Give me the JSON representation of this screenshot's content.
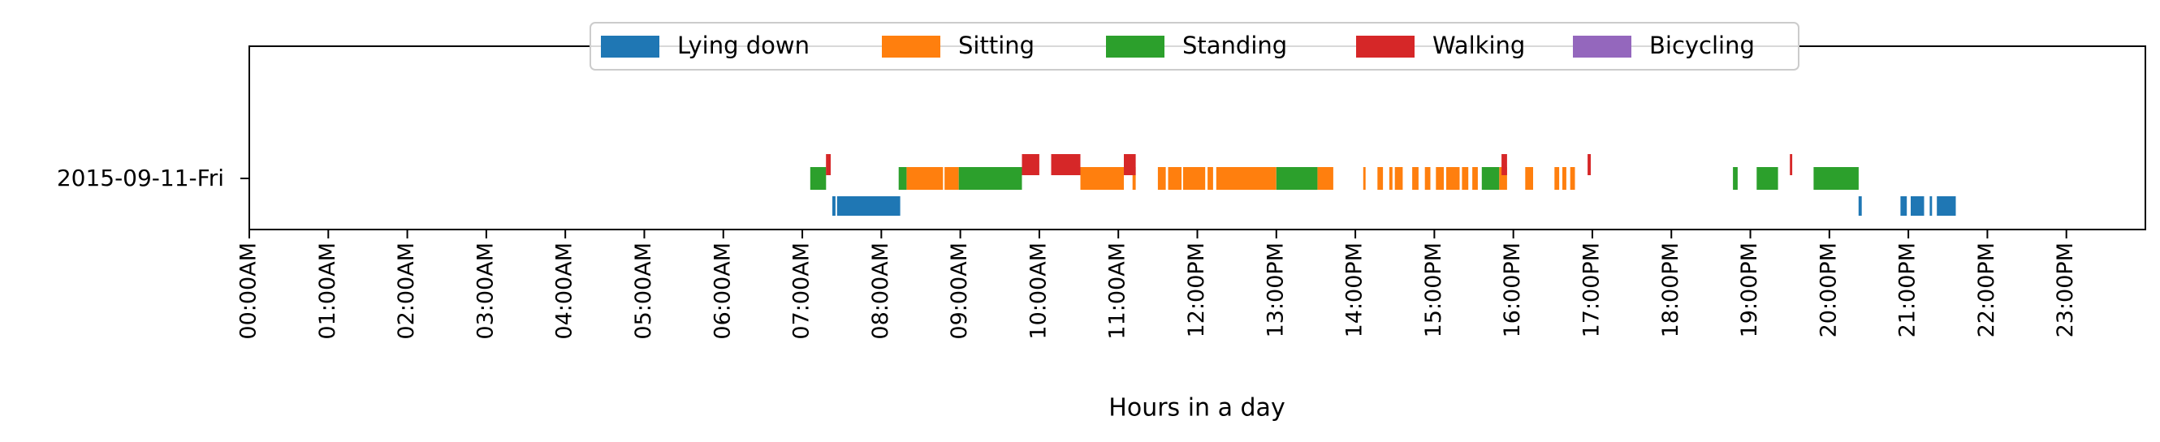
{
  "chart_data": {
    "type": "broken-barh",
    "title": "",
    "xlabel": "Hours in a day",
    "ylabel": "",
    "row_label": "2015-09-11-Fri",
    "xlim": [
      0,
      24
    ],
    "grid": false,
    "legend": {
      "placement": "upper center, overlapping top axis",
      "ncol": 5
    },
    "xtick_labels": [
      "00:00AM",
      "01:00AM",
      "02:00AM",
      "03:00AM",
      "04:00AM",
      "05:00AM",
      "06:00AM",
      "07:00AM",
      "08:00AM",
      "09:00AM",
      "10:00AM",
      "11:00AM",
      "12:00PM",
      "13:00PM",
      "14:00PM",
      "15:00PM",
      "16:00PM",
      "17:00PM",
      "18:00PM",
      "19:00PM",
      "20:00PM",
      "21:00PM",
      "22:00PM",
      "23:00PM"
    ],
    "series": [
      {
        "name": "Lying down",
        "color": "#1f77b4",
        "lane": 0,
        "intervals": [
          [
            7.38,
            7.42
          ],
          [
            7.44,
            8.24
          ],
          [
            20.37,
            20.41
          ],
          [
            20.9,
            20.98
          ],
          [
            21.03,
            21.2
          ],
          [
            21.27,
            21.3
          ],
          [
            21.36,
            21.6
          ]
        ]
      },
      {
        "name": "Sitting",
        "color": "#ff7f0e",
        "lane": 1,
        "intervals": [
          [
            8.32,
            8.78
          ],
          [
            8.8,
            8.98
          ],
          [
            10.52,
            11.07
          ],
          [
            11.18,
            11.22
          ],
          [
            11.5,
            11.6
          ],
          [
            11.63,
            11.8
          ],
          [
            11.82,
            12.1
          ],
          [
            12.13,
            12.2
          ],
          [
            12.24,
            13.0
          ],
          [
            13.52,
            13.72
          ],
          [
            14.1,
            14.13
          ],
          [
            14.28,
            14.35
          ],
          [
            14.43,
            14.47
          ],
          [
            14.5,
            14.6
          ],
          [
            14.72,
            14.8
          ],
          [
            14.88,
            14.95
          ],
          [
            15.02,
            15.12
          ],
          [
            15.15,
            15.32
          ],
          [
            15.35,
            15.43
          ],
          [
            15.48,
            15.55
          ],
          [
            15.62,
            15.8
          ],
          [
            15.82,
            15.92
          ],
          [
            16.15,
            16.25
          ],
          [
            16.52,
            16.58
          ],
          [
            16.62,
            16.67
          ],
          [
            16.72,
            16.78
          ]
        ]
      },
      {
        "name": "Standing",
        "color": "#2ca02c",
        "lane": 1,
        "intervals": [
          [
            7.1,
            7.3
          ],
          [
            8.22,
            8.32
          ],
          [
            8.98,
            9.78
          ],
          [
            13.0,
            13.52
          ],
          [
            15.6,
            15.82
          ],
          [
            18.78,
            18.84
          ],
          [
            19.08,
            19.35
          ],
          [
            19.8,
            20.37
          ]
        ]
      },
      {
        "name": "Walking",
        "color": "#d62728",
        "lane": 2,
        "intervals": [
          [
            7.3,
            7.36
          ],
          [
            9.78,
            10.0
          ],
          [
            10.15,
            10.33
          ],
          [
            10.33,
            10.52
          ],
          [
            11.07,
            11.22
          ],
          [
            15.85,
            15.92
          ],
          [
            16.94,
            16.98
          ],
          [
            19.5,
            19.53
          ]
        ]
      },
      {
        "name": "Bicycling",
        "color": "#9467bd",
        "lane": 2,
        "intervals": []
      }
    ]
  }
}
